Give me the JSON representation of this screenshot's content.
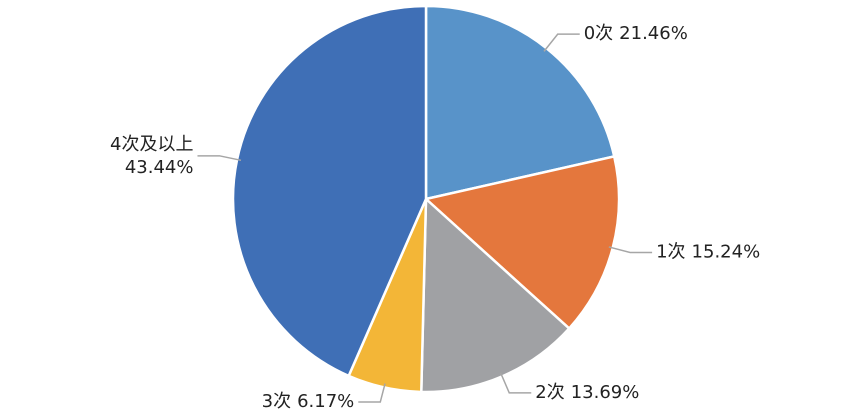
{
  "chart_data": {
    "type": "pie",
    "categories": [
      "0次",
      "1次",
      "2次",
      "3次",
      "4次及以上"
    ],
    "values": [
      21.46,
      15.24,
      13.69,
      6.17,
      43.44
    ],
    "value_labels": [
      "21.46%",
      "15.24%",
      "13.69%",
      "6.17%",
      "43.44%"
    ],
    "colors": [
      "#5893c9",
      "#e4773d",
      "#a0a1a4",
      "#f3b637",
      "#3f6fb6"
    ]
  }
}
